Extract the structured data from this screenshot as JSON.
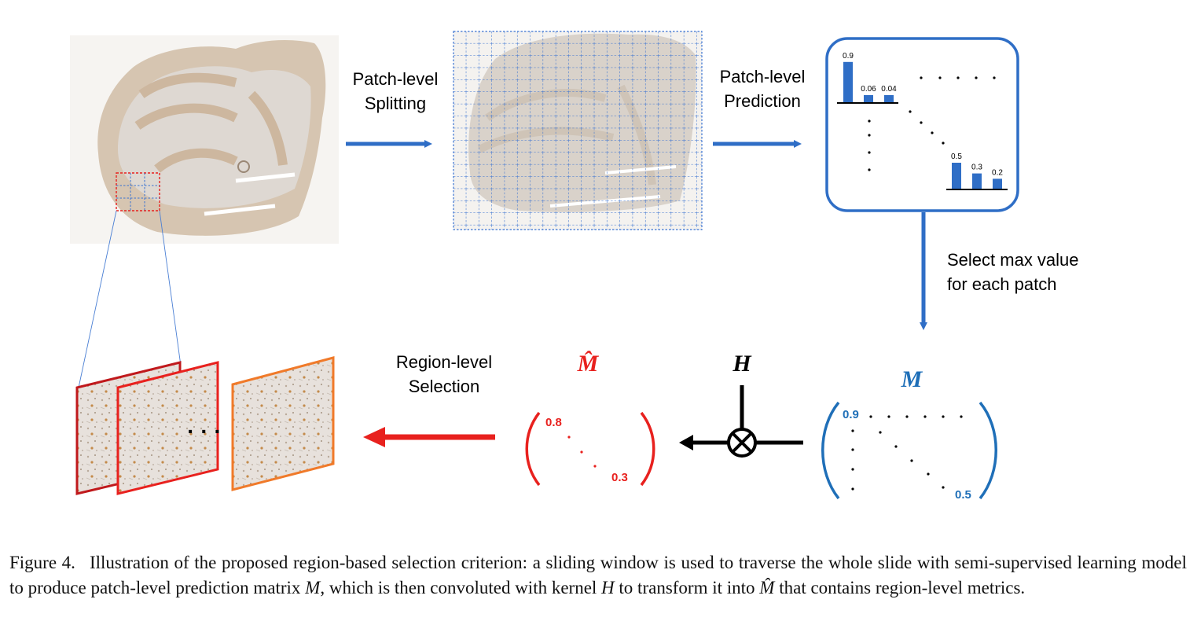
{
  "labels": {
    "patch_splitting": [
      "Patch-level",
      "Splitting"
    ],
    "patch_prediction": [
      "Patch-level",
      "Prediction"
    ],
    "select_max": [
      "Select max value",
      "for each patch"
    ],
    "region_selection": [
      "Region-level",
      "Selection"
    ],
    "kernel": "H",
    "matrix_m": "M",
    "matrix_m_hat": "M̂"
  },
  "prediction_box": {
    "bars_top": [
      "0.9",
      "0.06",
      "0.04"
    ],
    "bars_bottom": [
      "0.5",
      "0.3",
      "0.2"
    ],
    "bar_values_top": [
      0.9,
      0.06,
      0.04
    ],
    "bar_values_bottom": [
      0.5,
      0.3,
      0.2
    ]
  },
  "matrix_m": {
    "top_left": "0.9",
    "bottom_right": "0.5"
  },
  "matrix_m_hat": {
    "top_left": "0.8",
    "bottom_right": "0.3"
  },
  "ellipsis": "· · ·",
  "colors": {
    "blue": "#2f6ec6",
    "matrix_blue": "#1f6fb8",
    "red": "#e8211e",
    "dark_red": "#c0191c",
    "orange": "#f07a2a",
    "black": "#000000"
  },
  "caption": {
    "label": "Figure 4.",
    "seg1": "Illustration of the proposed region-based selection criterion: a sliding window is used to traverse the whole slide with semi-supervised learning model to produce patch-level prediction matrix ",
    "var_m": "M",
    "seg2": ", which is then convoluted with kernel ",
    "var_h": "H",
    "seg3": " to transform it into ",
    "var_mhat": "M̂",
    "seg4": " that contains region-level metrics."
  }
}
